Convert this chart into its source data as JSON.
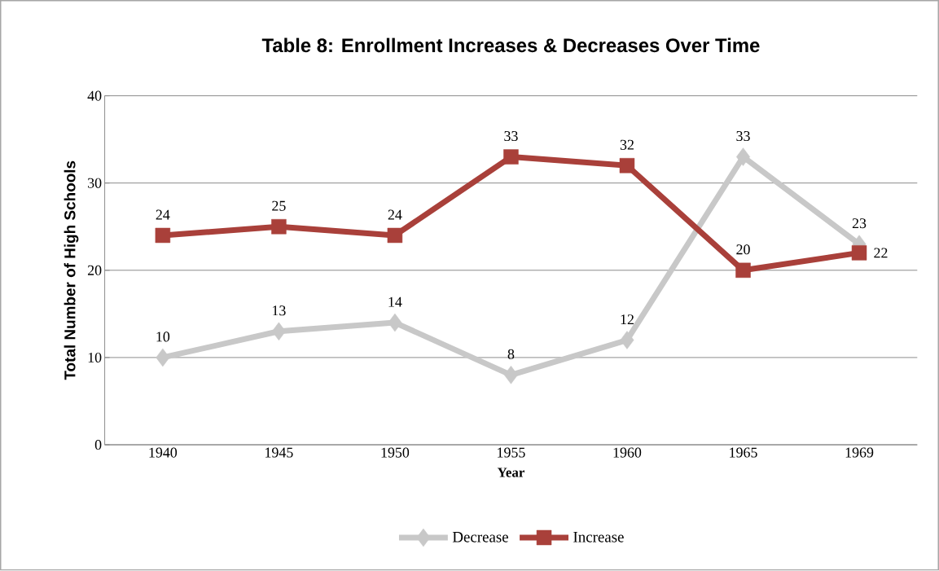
{
  "chart_data": {
    "type": "line",
    "title": "Table 8: Enrollment Increases & Decreases Over Time",
    "xlabel": "Year",
    "ylabel": "Total Number of High Schools",
    "categories": [
      "1940",
      "1945",
      "1950",
      "1955",
      "1960",
      "1965",
      "1969"
    ],
    "series": [
      {
        "name": "Decrease",
        "color": "#c8c8c8",
        "marker": "diamond",
        "values": [
          10,
          13,
          14,
          8,
          12,
          33,
          23
        ]
      },
      {
        "name": "Increase",
        "color": "#a9403a",
        "marker": "square",
        "values": [
          24,
          25,
          24,
          33,
          32,
          20,
          22
        ]
      }
    ],
    "ylim": [
      0,
      40
    ],
    "yticks": [
      0,
      10,
      20,
      30,
      40
    ],
    "grid": "y",
    "legend": "bottom",
    "data_labels": true
  }
}
